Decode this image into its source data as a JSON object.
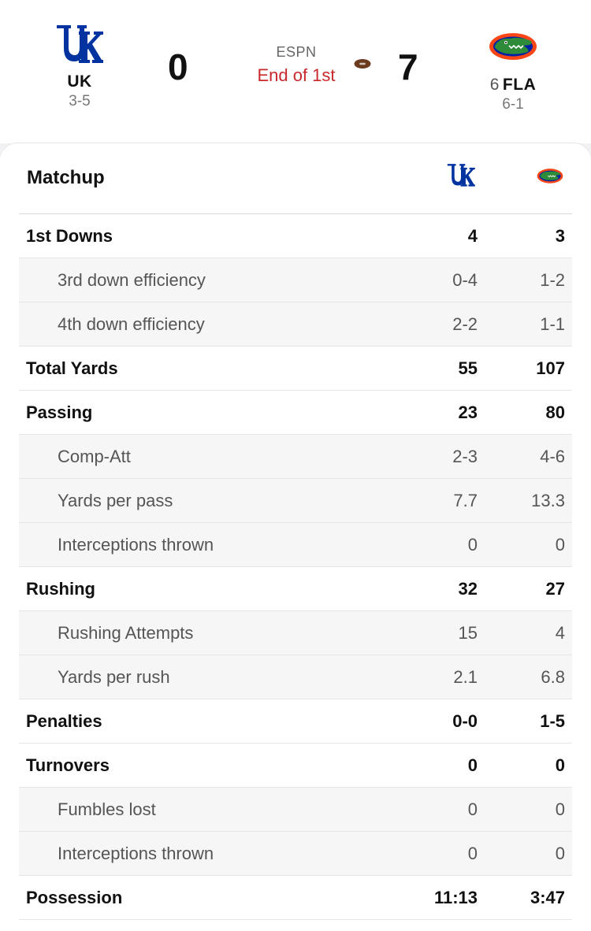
{
  "game": {
    "network": "ESPN",
    "status": "End of 1st",
    "home": {
      "abbr": "UK",
      "record": "3-5",
      "score": "0",
      "color": "#0033a0"
    },
    "away": {
      "rank": "6",
      "abbr": "FLA",
      "record": "6-1",
      "score": "7",
      "color": "#fa4616"
    }
  },
  "matchup": {
    "title": "Matchup",
    "rows": [
      {
        "label": "1st Downs",
        "home": "4",
        "away": "3",
        "type": "main"
      },
      {
        "label": "3rd down efficiency",
        "home": "0-4",
        "away": "1-2",
        "type": "sub"
      },
      {
        "label": "4th down efficiency",
        "home": "2-2",
        "away": "1-1",
        "type": "sub"
      },
      {
        "label": "Total Yards",
        "home": "55",
        "away": "107",
        "type": "main"
      },
      {
        "label": "Passing",
        "home": "23",
        "away": "80",
        "type": "main"
      },
      {
        "label": "Comp-Att",
        "home": "2-3",
        "away": "4-6",
        "type": "sub"
      },
      {
        "label": "Yards per pass",
        "home": "7.7",
        "away": "13.3",
        "type": "sub"
      },
      {
        "label": "Interceptions thrown",
        "home": "0",
        "away": "0",
        "type": "sub"
      },
      {
        "label": "Rushing",
        "home": "32",
        "away": "27",
        "type": "main"
      },
      {
        "label": "Rushing Attempts",
        "home": "15",
        "away": "4",
        "type": "sub"
      },
      {
        "label": "Yards per rush",
        "home": "2.1",
        "away": "6.8",
        "type": "sub"
      },
      {
        "label": "Penalties",
        "home": "0-0",
        "away": "1-5",
        "type": "main"
      },
      {
        "label": "Turnovers",
        "home": "0",
        "away": "0",
        "type": "main"
      },
      {
        "label": "Fumbles lost",
        "home": "0",
        "away": "0",
        "type": "sub"
      },
      {
        "label": "Interceptions thrown",
        "home": "0",
        "away": "0",
        "type": "sub"
      },
      {
        "label": "Possession",
        "home": "11:13",
        "away": "3:47",
        "type": "main"
      }
    ]
  },
  "icons": {
    "home_logo": "uk-logo-icon",
    "away_logo": "gator-logo-icon",
    "possession": "football-icon"
  }
}
